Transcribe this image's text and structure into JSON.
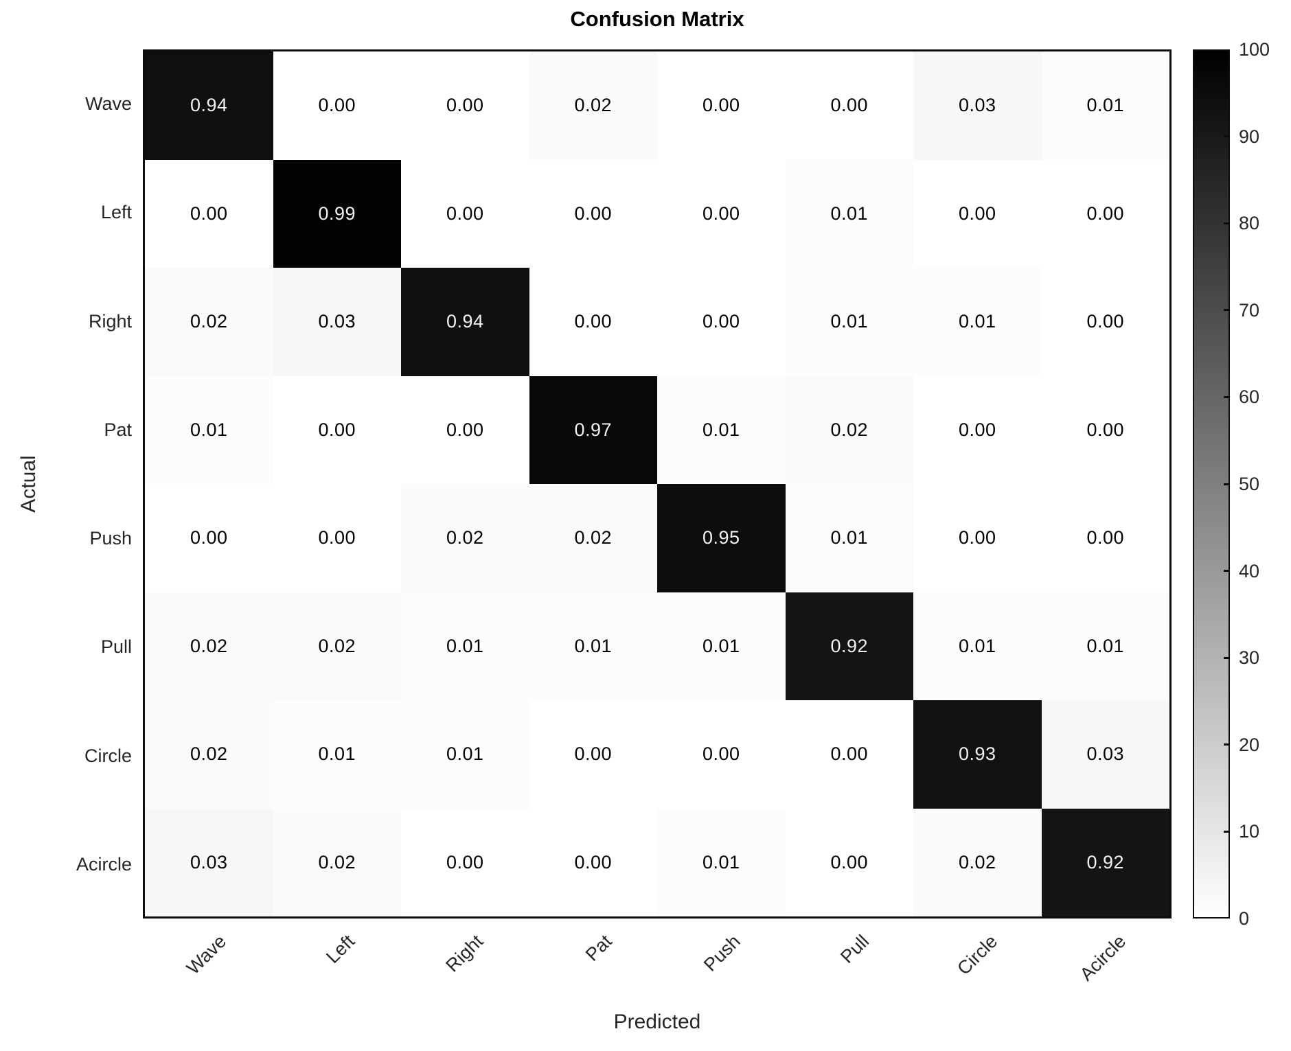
{
  "chart_data": {
    "type": "heatmap",
    "title": "Confusion Matrix",
    "xlabel": "Predicted",
    "ylabel": "Actual",
    "x_categories": [
      "Wave",
      "Left",
      "Right",
      "Pat",
      "Push",
      "Pull",
      "Circle",
      "Acircle"
    ],
    "y_categories": [
      "Wave",
      "Left",
      "Right",
      "Pat",
      "Push",
      "Pull",
      "Circle",
      "Acircle"
    ],
    "matrix": [
      [
        0.94,
        0.0,
        0.0,
        0.02,
        0.0,
        0.0,
        0.03,
        0.01
      ],
      [
        0.0,
        0.99,
        0.0,
        0.0,
        0.0,
        0.01,
        0.0,
        0.0
      ],
      [
        0.02,
        0.03,
        0.94,
        0.0,
        0.0,
        0.01,
        0.01,
        0.0
      ],
      [
        0.01,
        0.0,
        0.0,
        0.97,
        0.01,
        0.02,
        0.0,
        0.0
      ],
      [
        0.0,
        0.0,
        0.02,
        0.02,
        0.95,
        0.01,
        0.0,
        0.0
      ],
      [
        0.02,
        0.02,
        0.01,
        0.01,
        0.01,
        0.92,
        0.01,
        0.01
      ],
      [
        0.02,
        0.01,
        0.01,
        0.0,
        0.0,
        0.0,
        0.93,
        0.03
      ],
      [
        0.03,
        0.02,
        0.0,
        0.0,
        0.01,
        0.0,
        0.02,
        0.92
      ]
    ],
    "value_decimals": 2,
    "colormap": "reversed-gray",
    "high_color": "#000000",
    "low_color": "#ffffff",
    "grid": false,
    "colorbar": {
      "position": "right",
      "min": 0,
      "max": 100,
      "ticks": [
        0,
        10,
        20,
        30,
        40,
        50,
        60,
        70,
        80,
        90,
        100
      ]
    }
  }
}
